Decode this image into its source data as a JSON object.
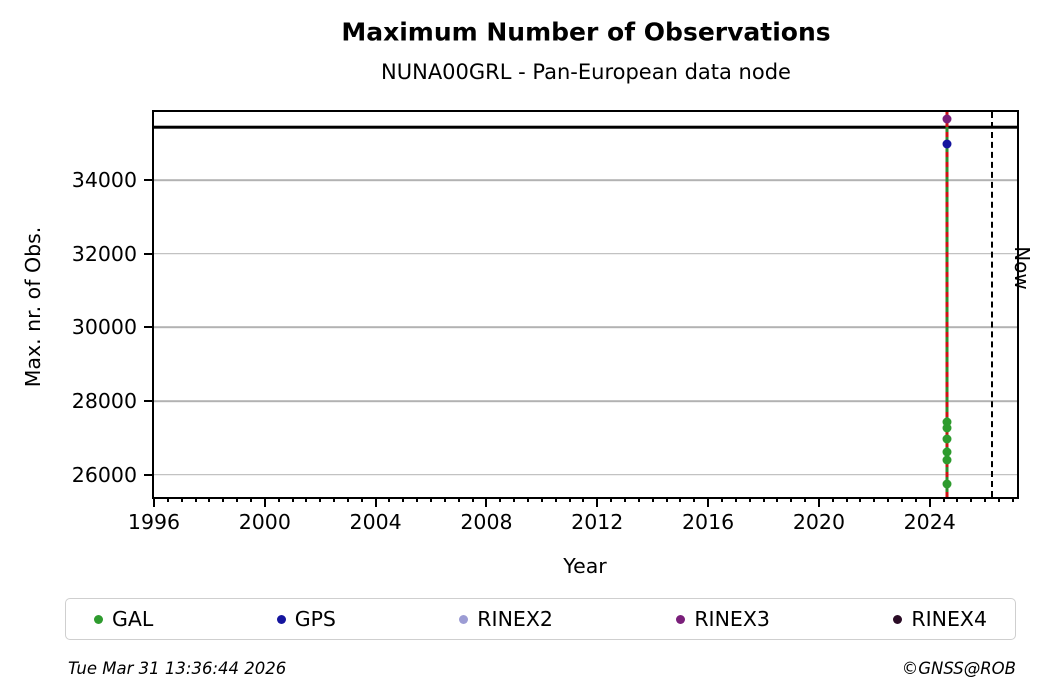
{
  "footer": {
    "timestamp": "Tue Mar 31 13:36:44 2026",
    "credit": "©GNSS@ROB"
  },
  "chart_data": {
    "type": "scatter",
    "title": "Maximum Number of Observations",
    "subtitle": "NUNA00GRL - Pan-European data node",
    "xlabel": "Year",
    "ylabel": "Max. nr. of Obs.",
    "xlim": [
      1996,
      2027.15
    ],
    "ylim": [
      25400,
      35845
    ],
    "x_major_ticks": [
      1996,
      2000,
      2004,
      2008,
      2012,
      2016,
      2020,
      2024
    ],
    "x_minor_step": 0.5,
    "y_ticks": [
      26000,
      28000,
      30000,
      32000,
      34000
    ],
    "grid": "horizontal-only",
    "grid_color": "#b2b2b2",
    "legend_position": "bottom",
    "reference_lines": [
      {
        "name": "max-level-line",
        "orientation": "horizontal",
        "value": 35430,
        "style": "solid",
        "color": "#000000"
      },
      {
        "name": "now-line",
        "orientation": "vertical",
        "value": 2026.26,
        "style": "dashed",
        "color": "#000000",
        "label": "Now"
      }
    ],
    "event_line": {
      "x": 2024.64,
      "solid_color": "#2e8b2e",
      "dash_color": "#cf1212",
      "style": "green solid with red dashes, full plot height"
    },
    "series": [
      {
        "name": "GAL",
        "color": "#2e9b2e",
        "points": [
          [
            2024.64,
            27430
          ],
          [
            2024.64,
            27270
          ],
          [
            2024.64,
            26980
          ],
          [
            2024.64,
            26630
          ],
          [
            2024.64,
            26400
          ],
          [
            2024.64,
            25750
          ]
        ]
      },
      {
        "name": "GPS",
        "color": "#15159e",
        "points": [
          [
            2024.64,
            34990
          ]
        ]
      },
      {
        "name": "RINEX2",
        "color": "#9c9cd4",
        "points": []
      },
      {
        "name": "RINEX3",
        "color": "#7a1f7a",
        "points": [
          [
            2024.64,
            35660
          ]
        ]
      },
      {
        "name": "RINEX4",
        "color": "#2b0c26",
        "points": []
      }
    ]
  }
}
